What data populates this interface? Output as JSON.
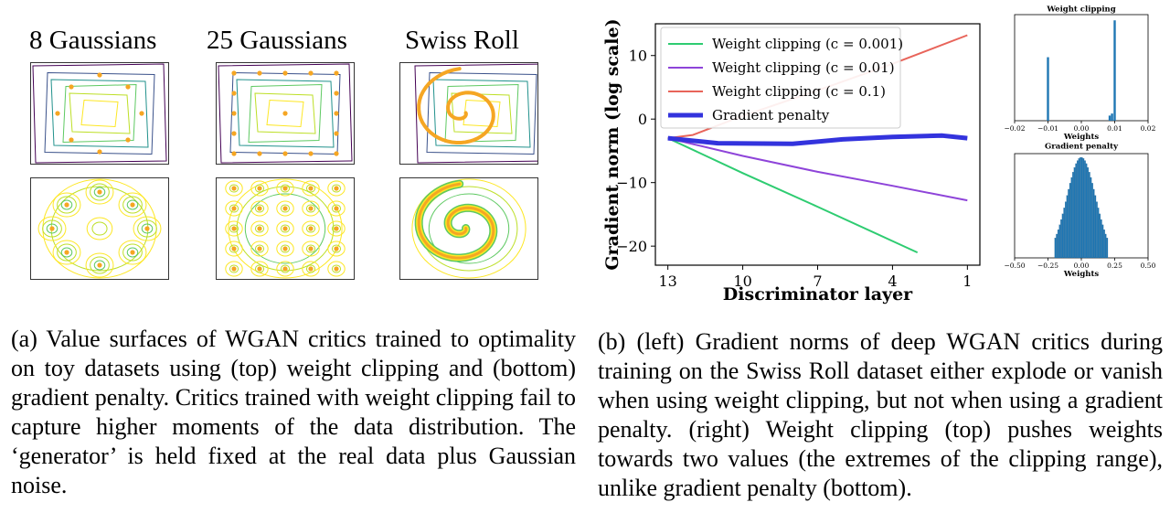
{
  "panel_a": {
    "titles": [
      "8 Gaussians",
      "25 Gaussians",
      "Swiss Roll"
    ],
    "caption": "(a)  Value surfaces of WGAN critics trained to optimality on toy datasets using (top) weight clipping and (bottom) gradient penalty.  Critics trained with weight clipping fail to capture higher moments of the data distribution. The ‘generator’ is held fixed at the real data plus Gaussian noise."
  },
  "panel_b": {
    "caption": "(b)  (left) Gradient norms of deep WGAN critics during training on the Swiss Roll dataset either explode or vanish when using weight clipping, but not when using a gradient penalty. (right) Weight clipping (top) pushes weights towards two values (the extremes of the clipping range), unlike gradient penalty (bottom)."
  },
  "chart_data": [
    {
      "type": "line",
      "xlabel": "Discriminator layer",
      "ylabel": "Gradient norm (log scale)",
      "x_ticks": [
        13,
        10,
        7,
        4,
        1
      ],
      "y_ticks": [
        10,
        0,
        -10,
        -20
      ],
      "xlim": [
        13.5,
        0.5
      ],
      "ylim": [
        -23,
        15
      ],
      "legend_position": "top-left",
      "series": [
        {
          "name": "Weight clipping (c = 0.001)",
          "color": "#2ecc71",
          "width": 2,
          "x": [
            13,
            10,
            7,
            4,
            3
          ],
          "y": [
            -3,
            -8.5,
            -13.8,
            -19.2,
            -21
          ]
        },
        {
          "name": "Weight clipping (c = 0.01)",
          "color": "#8e44d9",
          "width": 2,
          "x": [
            13,
            10,
            7,
            4,
            1
          ],
          "y": [
            -3,
            -5.8,
            -8.3,
            -10.5,
            -12.8
          ]
        },
        {
          "name": "Weight clipping (c = 0.1)",
          "color": "#e8645a",
          "width": 2,
          "x": [
            13,
            12,
            10,
            7,
            4,
            1
          ],
          "y": [
            -3,
            -2.5,
            0.5,
            4.5,
            8.7,
            13.2
          ]
        },
        {
          "name": "Gradient penalty",
          "color": "#3333dd",
          "width": 5,
          "x": [
            13,
            11,
            8,
            6,
            4,
            2,
            1
          ],
          "y": [
            -3,
            -3.8,
            -3.9,
            -3.2,
            -2.8,
            -2.6,
            -3.0
          ]
        }
      ]
    },
    {
      "type": "bar",
      "title": "Weight clipping",
      "xlabel": "Weights",
      "x_ticks": [
        "−0.02",
        "−0.01",
        "0.00",
        "0.01",
        "0.02"
      ],
      "x_tick_values": [
        -0.02,
        -0.01,
        0.0,
        0.01,
        0.02
      ],
      "xlim": [
        -0.02,
        0.02
      ],
      "bars": [
        {
          "x": -0.01,
          "height": 0.62
        },
        {
          "x": 0.0085,
          "height": 0.05
        },
        {
          "x": 0.0092,
          "height": 0.07
        },
        {
          "x": 0.01,
          "height": 0.98
        }
      ],
      "color": "#1f77b4"
    },
    {
      "type": "bar",
      "title": "Gradient penalty",
      "xlabel": "Weights",
      "x_ticks": [
        "−0.50",
        "−0.25",
        "0.00",
        "0.25",
        "0.50"
      ],
      "x_tick_values": [
        -0.5,
        -0.25,
        0.0,
        0.25,
        0.5
      ],
      "xlim": [
        -0.5,
        0.5
      ],
      "distribution": {
        "shape": "truncated-gaussian",
        "center": 0.0,
        "spread": 0.18,
        "range": [
          -0.2,
          0.2
        ],
        "bins": 36
      },
      "color": "#1f77b4"
    }
  ]
}
